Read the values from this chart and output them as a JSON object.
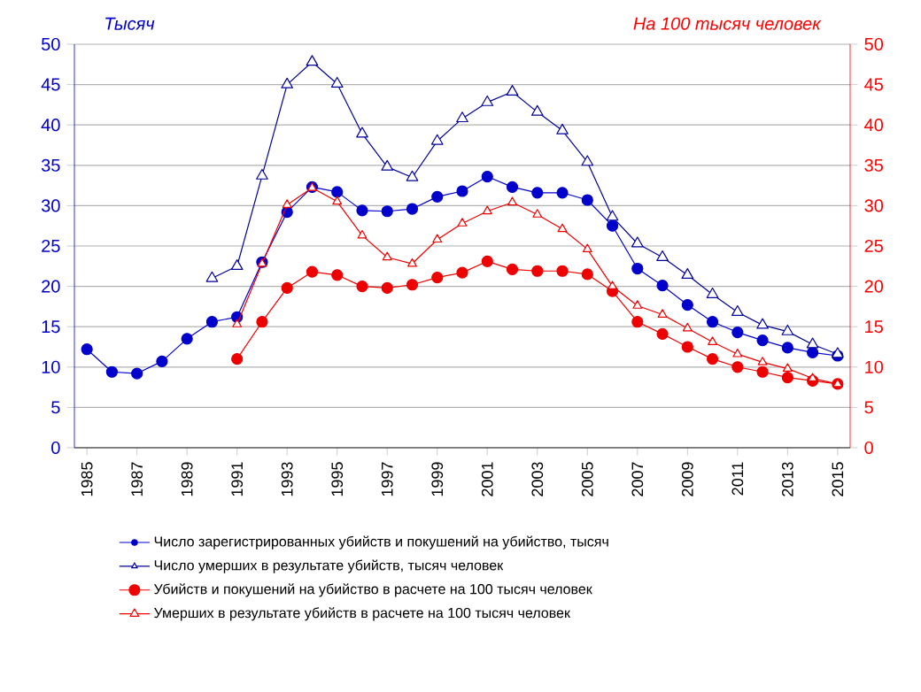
{
  "chart_data": {
    "type": "line",
    "ylabel": "Тысяч",
    "y2label": "На 100 тысяч человек",
    "x": [
      1985,
      1986,
      1987,
      1988,
      1989,
      1990,
      1991,
      1992,
      1993,
      1994,
      1995,
      1996,
      1997,
      1998,
      1999,
      2000,
      2001,
      2002,
      2003,
      2004,
      2005,
      2006,
      2007,
      2008,
      2009,
      2010,
      2011,
      2012,
      2013,
      2014,
      2015
    ],
    "xlim": [
      1984.5,
      2015.5
    ],
    "xticks": [
      1985,
      1987,
      1989,
      1991,
      1993,
      1995,
      1997,
      1999,
      2001,
      2003,
      2005,
      2007,
      2009,
      2011,
      2013,
      2015
    ],
    "ylim": [
      0,
      50
    ],
    "yticks": [
      0,
      5,
      10,
      15,
      20,
      25,
      30,
      35,
      40,
      45,
      50
    ],
    "y2lim": [
      0,
      50
    ],
    "y2ticks": [
      0,
      5,
      10,
      15,
      20,
      25,
      30,
      35,
      40,
      45,
      50
    ],
    "grid": "y",
    "legend": "bottom",
    "line_style": "solid",
    "series": [
      {
        "name": "Число  зарегистрированных убийств и покушений на убийство, тысяч",
        "color": "#0000cc",
        "marker": "circle",
        "values": [
          12.2,
          9.4,
          9.2,
          10.7,
          13.5,
          15.6,
          16.2,
          23.0,
          29.2,
          32.3,
          31.7,
          29.4,
          29.3,
          29.6,
          31.1,
          31.8,
          33.6,
          32.3,
          31.6,
          31.6,
          30.7,
          27.5,
          22.2,
          20.1,
          17.7,
          15.6,
          14.3,
          13.3,
          12.4,
          11.8,
          11.4
        ]
      },
      {
        "name": "Число  умерших в результате убийств, тысяч человек",
        "color": "#000099",
        "marker": "triangle",
        "values": [
          null,
          null,
          null,
          null,
          null,
          21.0,
          22.5,
          33.7,
          45.0,
          47.8,
          45.1,
          38.9,
          34.8,
          33.5,
          38.0,
          40.8,
          42.8,
          44.1,
          41.6,
          39.3,
          35.4,
          28.6,
          25.3,
          23.6,
          21.4,
          19.0,
          16.8,
          15.2,
          14.4,
          12.8,
          11.6
        ]
      },
      {
        "name": "Убийств и покушений  на убийство в расчете на 100 тысяч человек",
        "color": "#ee0000",
        "marker": "circle",
        "axis": "y2",
        "values": [
          null,
          null,
          null,
          null,
          null,
          null,
          11.0,
          15.6,
          19.8,
          21.8,
          21.4,
          20.0,
          19.8,
          20.2,
          21.1,
          21.7,
          23.1,
          22.1,
          21.9,
          21.9,
          21.5,
          19.4,
          15.6,
          14.1,
          12.5,
          11.0,
          10.0,
          9.4,
          8.7,
          8.3,
          7.9
        ]
      },
      {
        "name": "Умерших в результате убийств в расчете на 100 тысяч человек",
        "color": "#ee0000",
        "marker": "triangle",
        "axis": "y2",
        "values": [
          null,
          null,
          null,
          null,
          null,
          null,
          15.3,
          22.8,
          30.1,
          32.2,
          30.5,
          26.3,
          23.6,
          22.8,
          25.8,
          27.8,
          29.3,
          30.4,
          28.9,
          27.1,
          24.6,
          20.0,
          17.6,
          16.5,
          14.8,
          13.1,
          11.6,
          10.6,
          9.8,
          8.6,
          7.9
        ]
      }
    ]
  }
}
